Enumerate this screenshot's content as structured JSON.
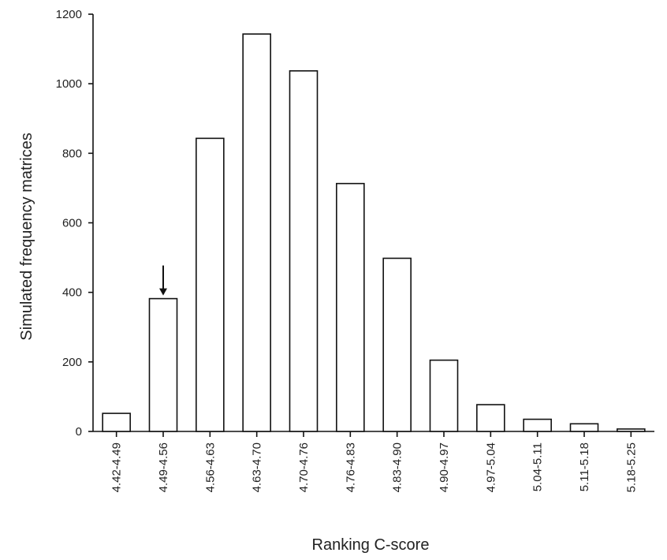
{
  "chart_data": {
    "type": "bar",
    "categories": [
      "4.42-4.49",
      "4.49-4.56",
      "4.56-4.63",
      "4.63-4.70",
      "4.70-4.76",
      "4.76-4.83",
      "4.83-4.90",
      "4.90-4.97",
      "4.97-5.04",
      "5.04-5.11",
      "5.11-5.18",
      "5.18-5.25"
    ],
    "values": [
      52,
      382,
      843,
      1143,
      1037,
      713,
      498,
      205,
      77,
      35,
      22,
      7
    ],
    "title": "",
    "xlabel": "Ranking C-score",
    "ylabel": "Simulated frequency matrices",
    "ylim": [
      0,
      1200
    ],
    "yticks": [
      0,
      200,
      400,
      600,
      800,
      1000,
      1200
    ],
    "grid": false,
    "annotations": [
      {
        "type": "arrow",
        "category": "4.49-4.56"
      }
    ]
  }
}
